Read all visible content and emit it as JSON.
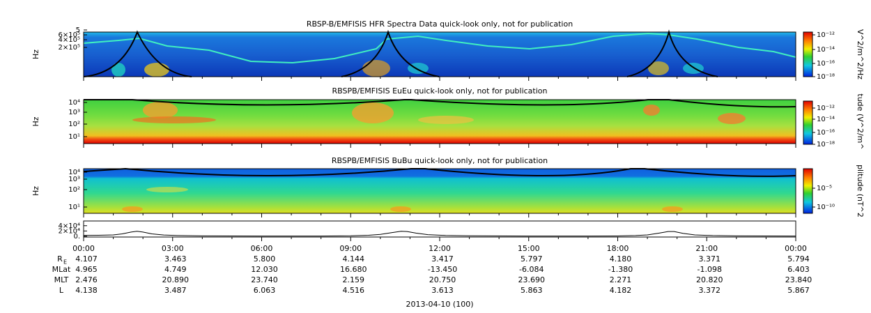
{
  "panels": [
    {
      "title": "RBSP-B/EMFISIS  HFR Spectra Data quick-look only, not for publication",
      "ylabel": "Hz",
      "yticks": [
        "5",
        "6×10⁵",
        "4×10⁵",
        "2×10⁵"
      ],
      "colorbar": {
        "label": "V^2/m^2/Hz",
        "ticks": [
          "10⁻¹²",
          "10⁻¹⁴",
          "10⁻¹⁶",
          "10⁻¹⁸"
        ]
      }
    },
    {
      "title": "RBSPB/EMFISIS  EuEu quick-look only, not for publication",
      "ylabel": "Hz",
      "yticks": [
        "10⁴",
        "10³",
        "10²",
        "10¹"
      ],
      "colorbar": {
        "label": "tude (V^2/m^",
        "ticks": [
          "10⁻¹²",
          "10⁻¹⁴",
          "10⁻¹⁶",
          "10⁻¹⁸"
        ]
      }
    },
    {
      "title": "RBSPB/EMFISIS  BuBu quick-look only, not for publication",
      "ylabel": "Hz",
      "yticks": [
        "10⁴",
        "10³",
        "10²",
        "10¹"
      ],
      "colorbar": {
        "label": "plitude (nT^2",
        "ticks": [
          "10⁻⁵",
          "10⁻¹⁰"
        ]
      }
    }
  ],
  "line_panel": {
    "ylim": [
      -3000,
      58000
    ],
    "yticks": [
      {
        "value": 40000,
        "label": "4×10⁴"
      },
      {
        "value": 20000,
        "label": "2×10⁴"
      },
      {
        "value": 0,
        "label": "0."
      }
    ],
    "xlim": [
      0,
      24
    ],
    "x": [
      0,
      0.5,
      1,
      1.3,
      1.6,
      1.8,
      2.0,
      2.3,
      2.7,
      3.2,
      4,
      6,
      8,
      9,
      9.6,
      10,
      10.4,
      10.7,
      10.9,
      11.2,
      11.6,
      12.2,
      13,
      15,
      17,
      18,
      18.6,
      19,
      19.4,
      19.7,
      19.9,
      20.2,
      20.6,
      21.2,
      22,
      24
    ],
    "values": [
      3000,
      3500,
      5000,
      9000,
      16000,
      19000,
      16000,
      9000,
      4500,
      2500,
      1200,
      500,
      800,
      1500,
      3500,
      7000,
      14000,
      19000,
      18000,
      12000,
      6000,
      3000,
      1500,
      500,
      600,
      1000,
      2500,
      5000,
      12000,
      18000,
      18000,
      11000,
      5000,
      2500,
      1200,
      800
    ]
  },
  "xaxis": {
    "ticks": [
      "00:00",
      "03:00",
      "06:00",
      "09:00",
      "12:00",
      "15:00",
      "18:00",
      "21:00",
      "00:00"
    ]
  },
  "ephemeris": [
    {
      "label": "R",
      "sub": "E",
      "values": [
        "4.107",
        "3.463",
        "5.800",
        "4.144",
        "3.417",
        "5.797",
        "4.180",
        "3.371",
        "5.794"
      ]
    },
    {
      "label": "MLat",
      "values": [
        "4.965",
        "4.749",
        "12.030",
        "16.680",
        "-13.450",
        "-6.084",
        "-1.380",
        "-1.098",
        "6.403"
      ]
    },
    {
      "label": "MLT",
      "values": [
        "2.476",
        "20.890",
        "23.740",
        "2.159",
        "20.750",
        "23.690",
        "2.271",
        "20.820",
        "23.840"
      ]
    },
    {
      "label": "L",
      "values": [
        "4.138",
        "3.487",
        "6.063",
        "4.516",
        "3.613",
        "5.863",
        "4.182",
        "3.372",
        "5.867"
      ]
    }
  ],
  "xlabel": "2013-04-10 (100)"
}
